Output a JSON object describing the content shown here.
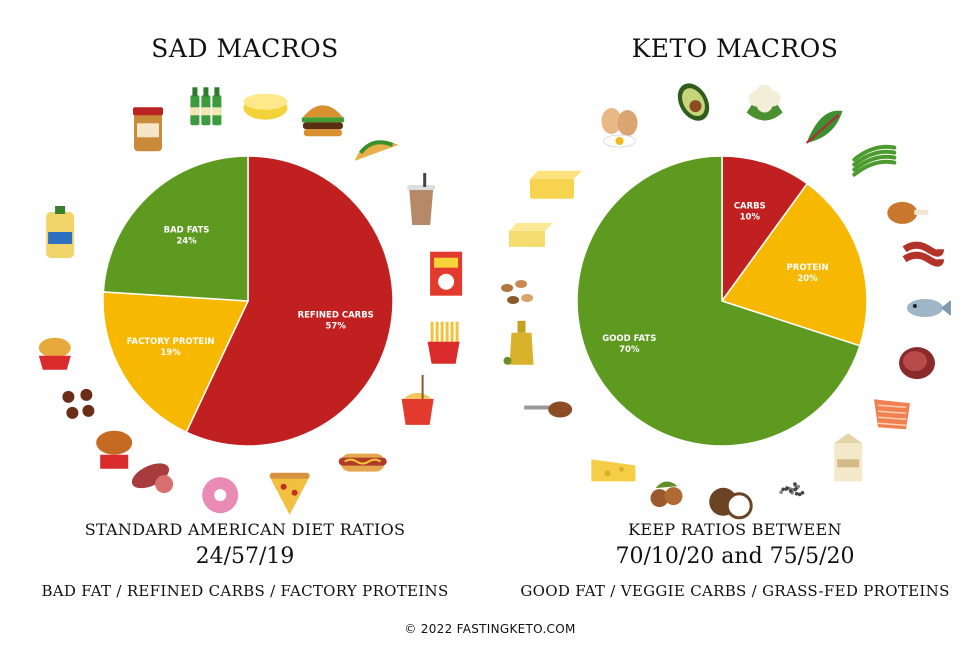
{
  "footer": "© 2022 FASTINGKETO.COM",
  "colors": {
    "fats_bad": "#5e9a20",
    "fats_good": "#5e9a20",
    "carbs": "#c0201f",
    "protein": "#f6b800"
  },
  "chart_data": [
    {
      "type": "pie",
      "title": "SAD MACROS",
      "slices": [
        {
          "label": "REFINED CARBS",
          "value": 57,
          "display": "57%",
          "color": "#c0201f"
        },
        {
          "label": "FACTORY PROTEIN",
          "value": 19,
          "display": "19%",
          "color": "#f6b800"
        },
        {
          "label": "BAD FATS",
          "value": 24,
          "display": "24%",
          "color": "#5e9a20"
        }
      ],
      "caption": {
        "heading": "STANDARD AMERICAN DIET RATIOS",
        "ratio": "24/57/19",
        "legend": "BAD FAT / REFINED CARBS / FACTORY PROTEINS"
      },
      "decorations": [
        "peanut-butter-icon",
        "soda-bottles-icon",
        "margarine-icon",
        "burger-icon",
        "taco-icon",
        "iced-coffee-icon",
        "cereal-box-icon",
        "fries-icon",
        "noodles-icon",
        "hotdog-icon",
        "pizza-icon",
        "donut-icon",
        "salami-icon",
        "fried-chicken-icon",
        "meatballs-icon",
        "nuggets-icon",
        "cooking-oil-icon"
      ]
    },
    {
      "type": "pie",
      "title": "KETO MACROS",
      "slices": [
        {
          "label": "CARBS",
          "value": 10,
          "display": "10%",
          "color": "#c0201f"
        },
        {
          "label": "PROTEIN",
          "value": 20,
          "display": "20%",
          "color": "#f6b800"
        },
        {
          "label": "GOOD FATS",
          "value": 70,
          "display": "70%",
          "color": "#5e9a20"
        }
      ],
      "caption": {
        "heading": "KEEP RATIOS BETWEEN",
        "ratio": "70/10/20 and 75/5/20",
        "legend": "GOOD FAT / VEGGIE CARBS / GRASS-FED PROTEINS"
      },
      "decorations": [
        "eggs-icon",
        "avocado-icon",
        "cauliflower-icon",
        "chard-icon",
        "green-beans-icon",
        "chicken-leg-icon",
        "bacon-icon",
        "fish-icon",
        "steak-icon",
        "salmon-icon",
        "cream-icon",
        "butter-block-icon",
        "chia-seeds-icon",
        "coconut-icon",
        "hazelnuts-icon",
        "cheese-icon",
        "nut-butter-spoon-icon",
        "olive-oil-icon",
        "mixed-nuts-icon",
        "butter-icon"
      ]
    }
  ]
}
